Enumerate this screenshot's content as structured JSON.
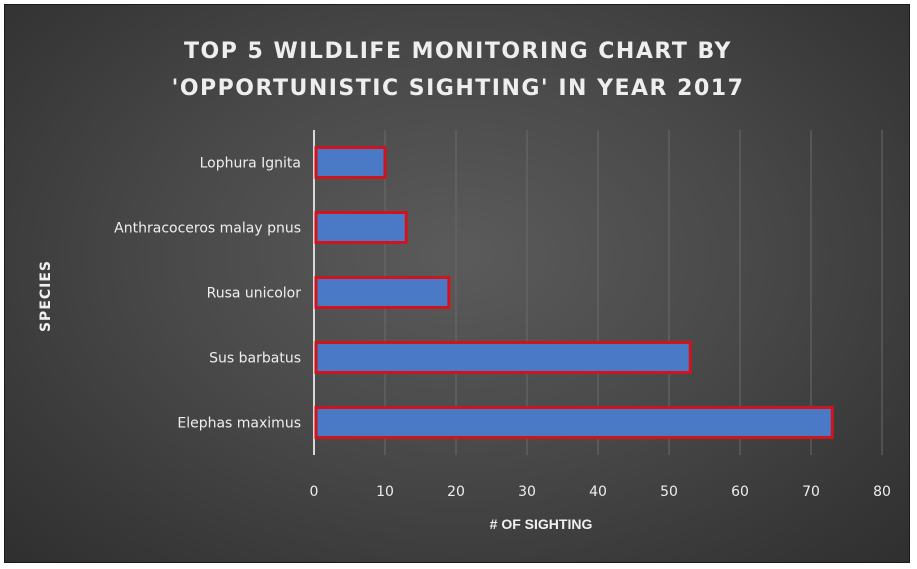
{
  "chart_data": {
    "type": "bar",
    "orientation": "horizontal",
    "title_lines": [
      "TOP 5 WILDLIFE MONITORING CHART BY",
      "'OPPORTUNISTIC SIGHTING' IN YEAR 2017"
    ],
    "xlabel": "# OF SIGHTING",
    "ylabel": "SPECIES",
    "categories": [
      "Lophura Ignita",
      "Anthracoceros malay pnus",
      "Rusa unicolor",
      "Sus barbatus",
      "Elephas maximus"
    ],
    "values": [
      10,
      13,
      19,
      53,
      73
    ],
    "xlim": [
      0,
      80
    ],
    "xticks": [
      0,
      10,
      20,
      30,
      40,
      50,
      60,
      70,
      80
    ],
    "grid": true,
    "legend": "none",
    "colors": {
      "bar_fill": "#4a79c6",
      "bar_border": "#d0141e",
      "background": "#464646",
      "text": "#eeeeee"
    }
  }
}
